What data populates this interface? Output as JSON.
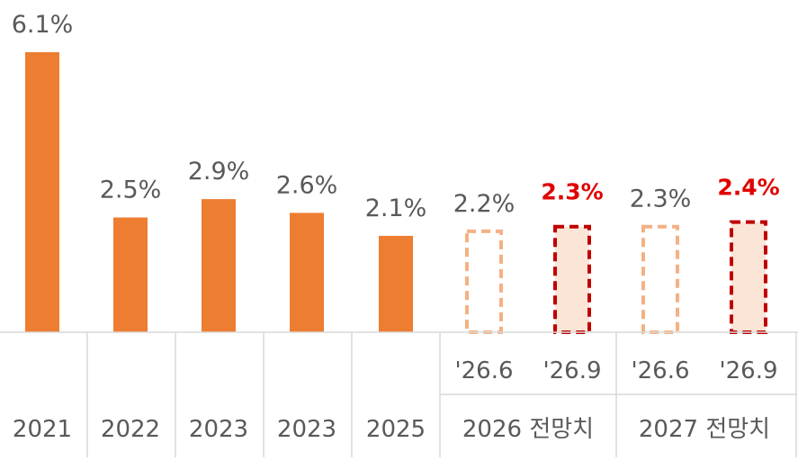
{
  "chart_data": {
    "type": "bar",
    "title": "",
    "xlabel": "",
    "ylabel": "",
    "ylim": [
      0,
      6.1
    ],
    "grid": false,
    "legend": "none",
    "colors": {
      "actual": "#ed7d31",
      "forecast_prev_stroke": "#f4b183",
      "forecast_new_stroke": "#c00000",
      "forecast_new_fill": "#fbe5d6",
      "highlight_label": "#e00000",
      "label": "#595959",
      "axis_line": "#d9d9d9"
    },
    "bars": [
      {
        "category": "2021",
        "value": 6.1,
        "label": "6.1%",
        "style": "actual"
      },
      {
        "category": "2022",
        "value": 2.5,
        "label": "2.5%",
        "style": "actual"
      },
      {
        "category": "2023",
        "value": 2.9,
        "label": "2.9%",
        "style": "actual"
      },
      {
        "category": "2023",
        "value": 2.6,
        "label": "2.6%",
        "style": "actual"
      },
      {
        "category": "2025",
        "value": 2.1,
        "label": "2.1%",
        "style": "actual"
      },
      {
        "category": "2026 전망치",
        "sub_category": "'26.6",
        "value": 2.2,
        "label": "2.2%",
        "style": "forecast_prev"
      },
      {
        "category": "2026 전망치",
        "sub_category": "'26.9",
        "value": 2.3,
        "label": "2.3%",
        "style": "forecast_new"
      },
      {
        "category": "2027 전망치",
        "sub_category": "'26.6",
        "value": 2.3,
        "label": "2.3%",
        "style": "forecast_prev"
      },
      {
        "category": "2027 전망치",
        "sub_category": "'26.9",
        "value": 2.4,
        "label": "2.4%",
        "style": "forecast_new"
      }
    ],
    "categories": [
      "2021",
      "2022",
      "2023",
      "2023",
      "2025",
      "2026 전망치",
      "2027 전망치"
    ],
    "sub_categories": [
      "'26.6",
      "'26.9",
      "'26.6",
      "'26.9"
    ]
  }
}
